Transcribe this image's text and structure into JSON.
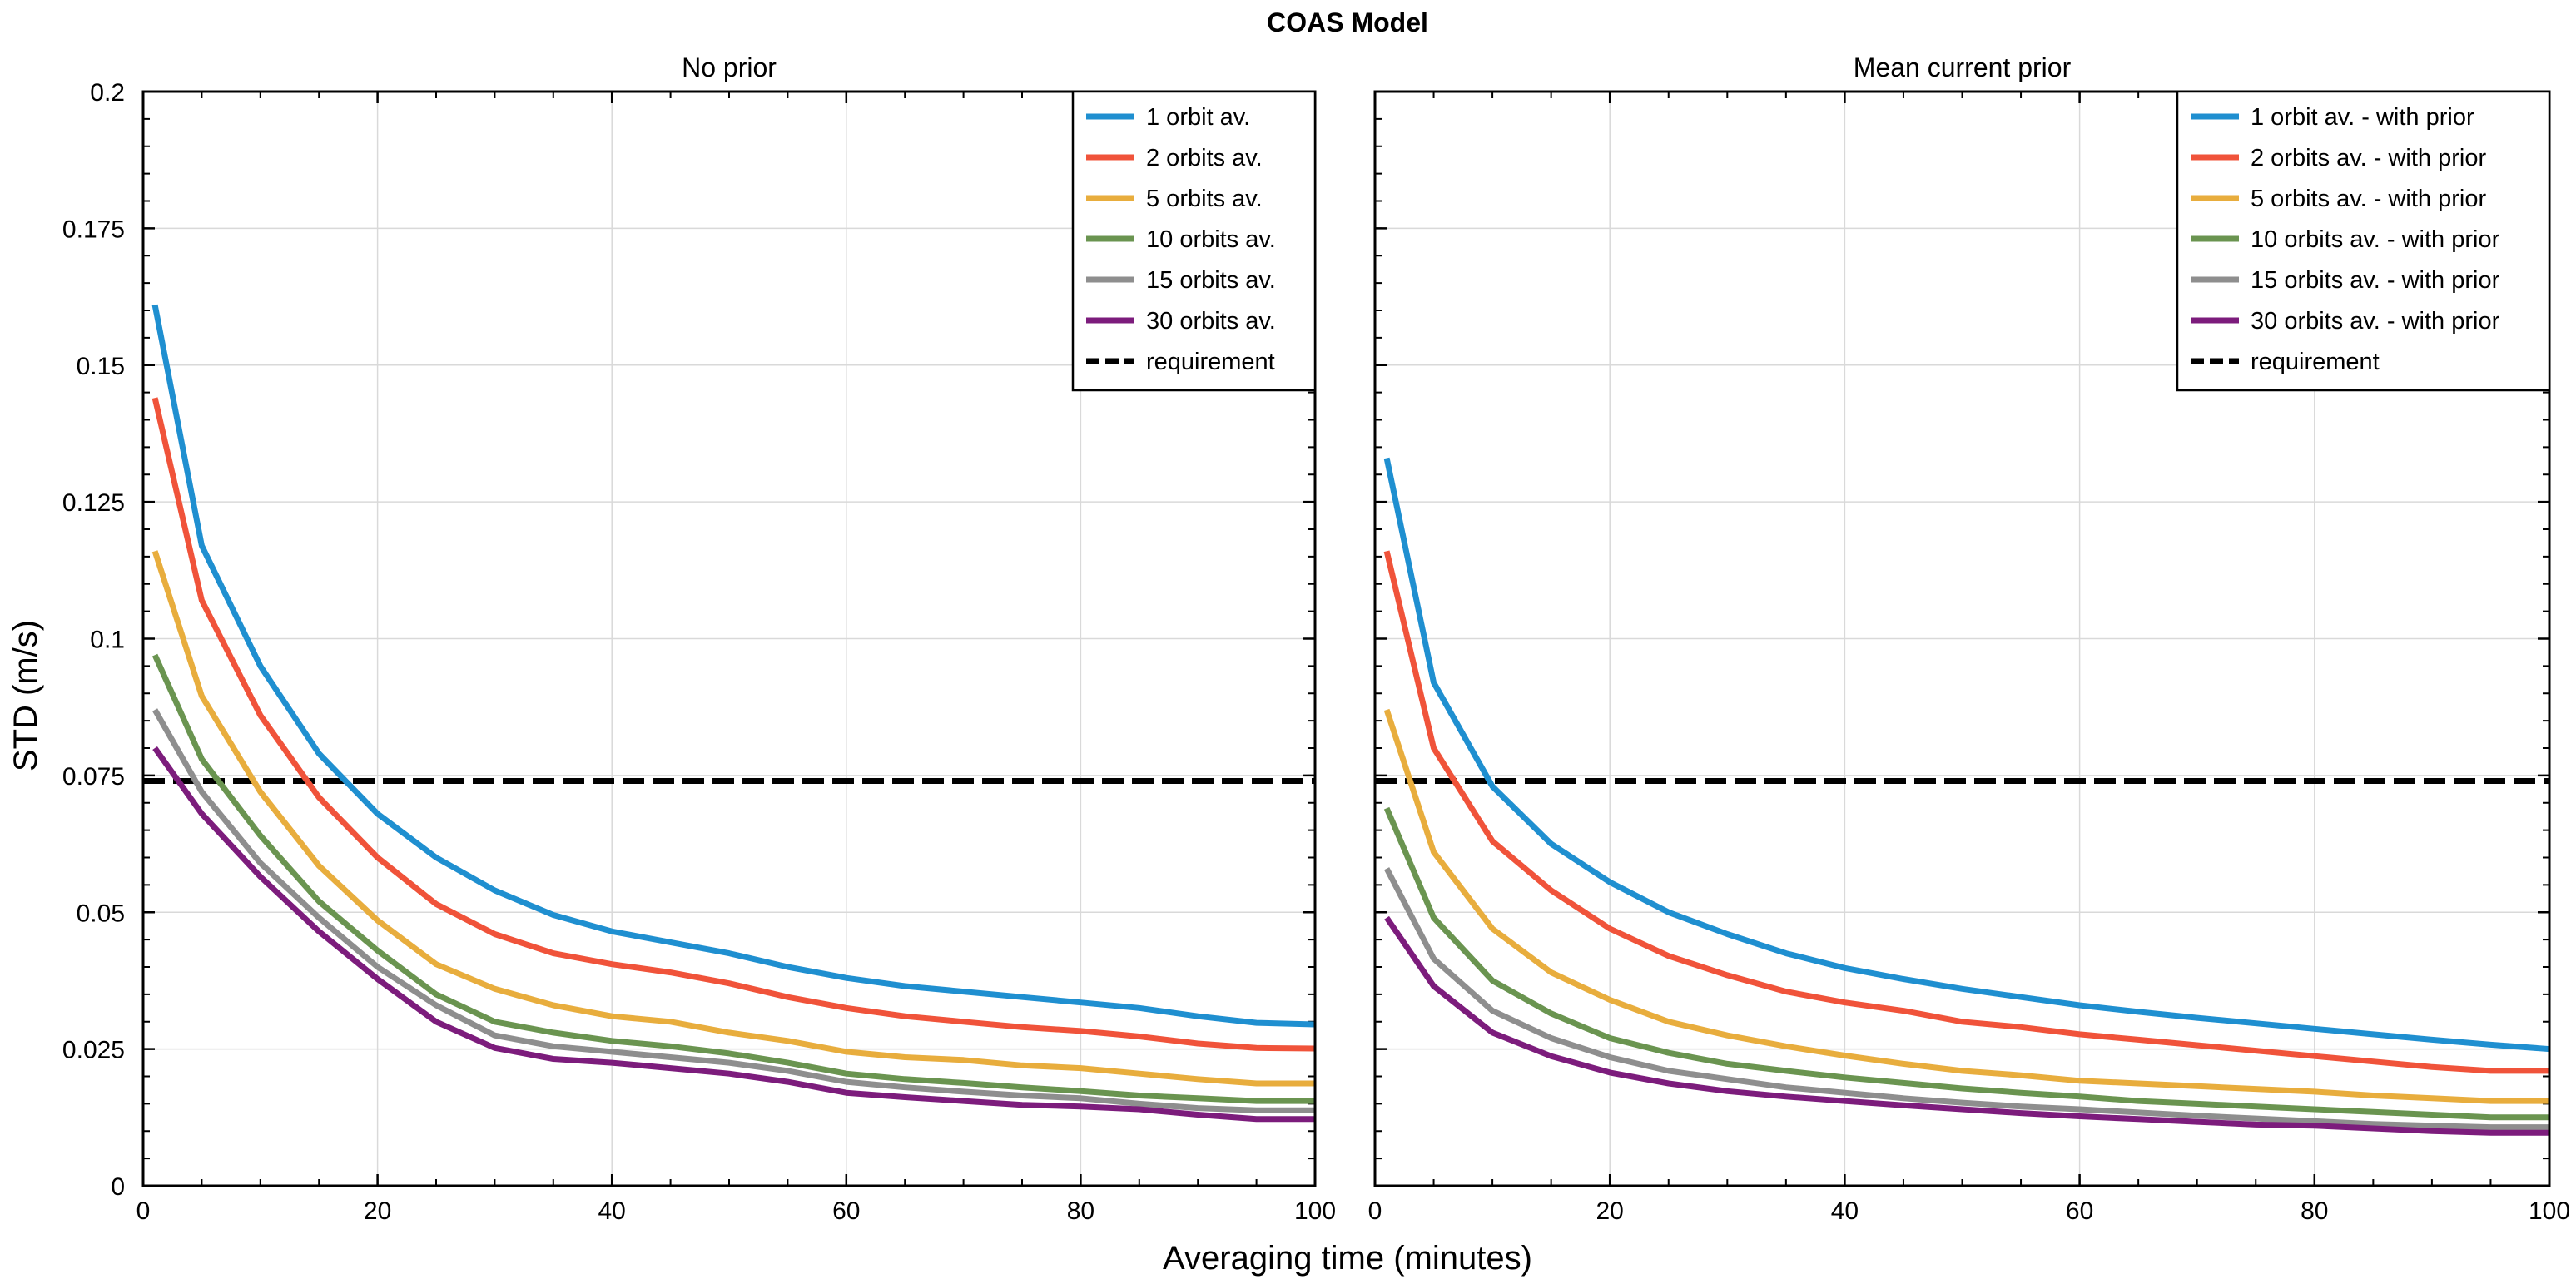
{
  "figure": {
    "suptitle": "COAS Model",
    "xlabel": "Averaging time (minutes)",
    "ylabel": "STD (m/s)"
  },
  "colors": {
    "1orbit": "#1f8fd0",
    "2orbits": "#f0533a",
    "5orbits": "#e8ad3d",
    "10orbits": "#6a9450",
    "15orbits": "#8e8e8e",
    "30orbits": "#7c1c7c",
    "requirement": "#000000",
    "grid": "#d9d9d9"
  },
  "chart_data": [
    {
      "type": "line",
      "title": "No prior",
      "xlabel": "Averaging time (minutes)",
      "ylabel": "STD (m/s)",
      "xlim": [
        0,
        100
      ],
      "ylim": [
        0,
        0.2
      ],
      "xticks": [
        0,
        20,
        40,
        60,
        80,
        100
      ],
      "xtick_labels": [
        "0",
        "20",
        "40",
        "60",
        "80",
        "100"
      ],
      "yticks": [
        0,
        0.025,
        0.05,
        0.075,
        0.1,
        0.125,
        0.15,
        0.175,
        0.2
      ],
      "ytick_labels": [
        "0",
        "0.025",
        "0.05",
        "0.075",
        "0.1",
        "0.125",
        "0.15",
        "0.175",
        "0.2"
      ],
      "grid": true,
      "legend_position": "top-right",
      "x": [
        1,
        5,
        10,
        15,
        20,
        25,
        30,
        35,
        40,
        45,
        50,
        55,
        60,
        65,
        70,
        75,
        80,
        85,
        90,
        95,
        100
      ],
      "series": [
        {
          "name": "1 orbit av.",
          "color_key": "1orbit",
          "values": [
            0.161,
            0.117,
            0.095,
            0.079,
            0.068,
            0.06,
            0.054,
            0.0495,
            0.0465,
            0.0445,
            0.0425,
            0.04,
            0.038,
            0.0365,
            0.0355,
            0.0345,
            0.0335,
            0.0325,
            0.031,
            0.0298,
            0.0295
          ]
        },
        {
          "name": "2 orbits av.",
          "color_key": "2orbits",
          "values": [
            0.144,
            0.107,
            0.086,
            0.071,
            0.06,
            0.0515,
            0.046,
            0.0425,
            0.0405,
            0.039,
            0.037,
            0.0345,
            0.0325,
            0.031,
            0.03,
            0.029,
            0.0283,
            0.0273,
            0.026,
            0.0252,
            0.0251
          ]
        },
        {
          "name": "5 orbits av.",
          "color_key": "5orbits",
          "values": [
            0.116,
            0.0895,
            0.072,
            0.0585,
            0.0485,
            0.0405,
            0.036,
            0.033,
            0.031,
            0.03,
            0.028,
            0.0265,
            0.0245,
            0.0235,
            0.023,
            0.022,
            0.0215,
            0.0205,
            0.0195,
            0.0187,
            0.0187
          ]
        },
        {
          "name": "10 orbits av.",
          "color_key": "10orbits",
          "values": [
            0.097,
            0.078,
            0.064,
            0.052,
            0.043,
            0.035,
            0.03,
            0.028,
            0.0265,
            0.0255,
            0.0242,
            0.0225,
            0.0205,
            0.0195,
            0.0188,
            0.018,
            0.0173,
            0.0165,
            0.016,
            0.0155,
            0.0155
          ]
        },
        {
          "name": "15 orbits av.",
          "color_key": "15orbits",
          "values": [
            0.087,
            0.072,
            0.059,
            0.049,
            0.04,
            0.033,
            0.0275,
            0.0255,
            0.0245,
            0.0235,
            0.0225,
            0.021,
            0.019,
            0.018,
            0.0172,
            0.0165,
            0.016,
            0.015,
            0.0142,
            0.0138,
            0.0138
          ]
        },
        {
          "name": "30 orbits av.",
          "color_key": "30orbits",
          "values": [
            0.08,
            0.068,
            0.0565,
            0.0465,
            0.0378,
            0.03,
            0.0252,
            0.0232,
            0.0225,
            0.0215,
            0.0205,
            0.019,
            0.017,
            0.0162,
            0.0155,
            0.0148,
            0.0145,
            0.014,
            0.013,
            0.0122,
            0.0122
          ]
        }
      ],
      "requirement": {
        "name": "requirement",
        "value": 0.074
      }
    },
    {
      "type": "line",
      "title": "Mean current prior",
      "xlabel": "Averaging time (minutes)",
      "ylabel": "STD (m/s)",
      "xlim": [
        0,
        100
      ],
      "ylim": [
        0,
        0.2
      ],
      "xticks": [
        0,
        20,
        40,
        60,
        80,
        100
      ],
      "xtick_labels": [
        "0",
        "20",
        "40",
        "60",
        "80",
        "100"
      ],
      "yticks": [
        0,
        0.025,
        0.05,
        0.075,
        0.1,
        0.125,
        0.15,
        0.175,
        0.2
      ],
      "ytick_labels": [
        "0",
        "0.025",
        "0.05",
        "0.075",
        "0.1",
        "0.125",
        "0.15",
        "0.175",
        "0.2"
      ],
      "grid": true,
      "legend_position": "top-right",
      "x": [
        1,
        5,
        10,
        15,
        20,
        25,
        30,
        35,
        40,
        45,
        50,
        55,
        60,
        65,
        70,
        75,
        80,
        85,
        90,
        95,
        100
      ],
      "series": [
        {
          "name": "1 orbit av. - with prior",
          "color_key": "1orbit",
          "values": [
            0.133,
            0.092,
            0.073,
            0.0625,
            0.0555,
            0.05,
            0.046,
            0.0425,
            0.0398,
            0.0378,
            0.036,
            0.0345,
            0.033,
            0.0318,
            0.0307,
            0.0297,
            0.0287,
            0.0277,
            0.0267,
            0.0258,
            0.025
          ]
        },
        {
          "name": "2 orbits av. - with prior",
          "color_key": "2orbits",
          "values": [
            0.116,
            0.08,
            0.063,
            0.054,
            0.047,
            0.042,
            0.0385,
            0.0355,
            0.0335,
            0.032,
            0.03,
            0.029,
            0.0277,
            0.0267,
            0.0257,
            0.0247,
            0.0237,
            0.0227,
            0.0217,
            0.021,
            0.021
          ]
        },
        {
          "name": "5 orbits av. - with prior",
          "color_key": "5orbits",
          "values": [
            0.087,
            0.061,
            0.047,
            0.039,
            0.034,
            0.03,
            0.0275,
            0.0255,
            0.0238,
            0.0223,
            0.021,
            0.0202,
            0.0192,
            0.0187,
            0.0182,
            0.0177,
            0.0172,
            0.0165,
            0.016,
            0.0155,
            0.0155
          ]
        },
        {
          "name": "10 orbits av. - with prior",
          "color_key": "10orbits",
          "values": [
            0.069,
            0.049,
            0.0375,
            0.0315,
            0.027,
            0.0243,
            0.0223,
            0.021,
            0.0198,
            0.0188,
            0.0178,
            0.017,
            0.0163,
            0.0155,
            0.015,
            0.0145,
            0.014,
            0.0135,
            0.013,
            0.0125,
            0.0125
          ]
        },
        {
          "name": "15 orbits av. - with prior",
          "color_key": "15orbits",
          "values": [
            0.058,
            0.0415,
            0.032,
            0.027,
            0.0235,
            0.021,
            0.0195,
            0.018,
            0.017,
            0.016,
            0.0152,
            0.0145,
            0.014,
            0.0134,
            0.0128,
            0.0123,
            0.0118,
            0.0113,
            0.011,
            0.0107,
            0.0107
          ]
        },
        {
          "name": "30 orbits av. - with prior",
          "color_key": "30orbits",
          "values": [
            0.049,
            0.0365,
            0.028,
            0.0237,
            0.0207,
            0.0187,
            0.0173,
            0.0163,
            0.0155,
            0.0147,
            0.014,
            0.0133,
            0.0127,
            0.0122,
            0.0117,
            0.0112,
            0.011,
            0.0105,
            0.01,
            0.0097,
            0.0097
          ]
        }
      ],
      "requirement": {
        "name": "requirement",
        "value": 0.074
      }
    }
  ]
}
